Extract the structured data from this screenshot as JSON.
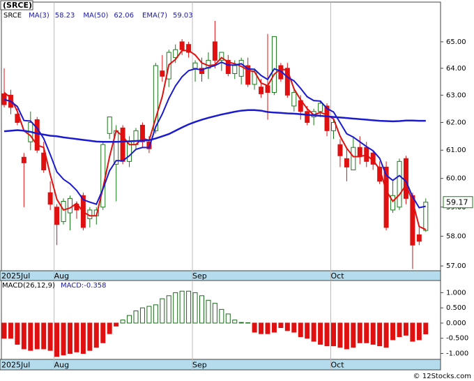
{
  "chart_data": [
    {
      "type": "candlestick",
      "title": "(SRCE)",
      "legend_symbol": "SRCE",
      "categories": [
        "2025Jul",
        null,
        null,
        null,
        null,
        null,
        null,
        null,
        "Aug",
        null,
        null,
        null,
        null,
        null,
        null,
        null,
        null,
        null,
        null,
        null,
        null,
        null,
        null,
        null,
        null,
        null,
        null,
        null,
        null,
        "Sep",
        null,
        null,
        null,
        null,
        null,
        null,
        null,
        null,
        null,
        null,
        null,
        null,
        null,
        null,
        null,
        null,
        null,
        null,
        null,
        null,
        "Oct",
        null,
        null,
        null,
        null,
        null,
        null,
        null,
        null,
        null,
        null,
        null,
        null,
        null,
        null
      ],
      "open": [
        63.05,
        63.0,
        62.3,
        60.75,
        61.3,
        62.1,
        60.9,
        59.5,
        59.0,
        58.5,
        58.8,
        59.1,
        59.4,
        58.6,
        58.7,
        59.0,
        61.6,
        60.5,
        61.8,
        60.6,
        61.2,
        61.9,
        61.3,
        61.7,
        63.9,
        63.6,
        64.4,
        65.0,
        64.9,
        64.0,
        64.0,
        64.0,
        65.0,
        64.3,
        64.3,
        63.8,
        63.7,
        64.1,
        63.4,
        63.3,
        63.35,
        63.1,
        64.1,
        64.0,
        62.6,
        62.8,
        62.4,
        62.2,
        62.4,
        62.6,
        61.7,
        61.2,
        60.7,
        60.3,
        61.1,
        61.1,
        60.9,
        60.4,
        60.4,
        58.9,
        59.0,
        60.7,
        59.4,
        58.05,
        58.2
      ],
      "high": [
        64.0,
        63.2,
        62.5,
        60.9,
        62.4,
        62.2,
        61.3,
        59.9,
        59.1,
        59.3,
        59.4,
        59.2,
        59.5,
        59.0,
        59.0,
        61.3,
        62.2,
        61.9,
        61.9,
        61.5,
        61.8,
        62.0,
        61.5,
        64.2,
        64.5,
        64.7,
        64.9,
        65.1,
        65.0,
        64.3,
        64.4,
        64.6,
        65.8,
        64.6,
        64.5,
        64.3,
        64.4,
        64.4,
        64.0,
        63.6,
        65.3,
        65.2,
        64.2,
        64.2,
        63.3,
        63.0,
        62.6,
        62.5,
        62.8,
        62.7,
        62.1,
        61.4,
        61.1,
        61.5,
        61.5,
        61.3,
        61.0,
        60.6,
        60.6,
        59.9,
        60.7,
        60.8,
        59.5,
        58.3,
        59.3
      ],
      "low": [
        62.55,
        62.3,
        61.9,
        59.0,
        61.0,
        60.9,
        60.2,
        58.9,
        57.7,
        58.4,
        58.2,
        58.6,
        58.2,
        58.3,
        58.4,
        58.9,
        61.4,
        59.2,
        60.5,
        60.4,
        61.0,
        61.1,
        60.9,
        61.6,
        63.5,
        63.3,
        64.2,
        64.5,
        64.4,
        63.5,
        63.5,
        63.6,
        64.0,
        63.9,
        63.7,
        63.6,
        63.4,
        63.3,
        63.2,
        62.9,
        62.1,
        63.0,
        63.5,
        62.9,
        62.4,
        62.1,
        61.9,
        61.9,
        62.2,
        61.5,
        61.4,
        60.4,
        59.9,
        60.3,
        60.5,
        60.4,
        60.3,
        59.8,
        58.2,
        58.8,
        58.9,
        59.1,
        56.9,
        57.7,
        58.15
      ],
      "close": [
        62.65,
        62.55,
        62.0,
        60.55,
        62.0,
        61.0,
        60.3,
        59.1,
        58.4,
        59.2,
        59.3,
        58.9,
        58.3,
        58.9,
        58.9,
        61.2,
        62.2,
        61.7,
        60.6,
        61.3,
        61.7,
        61.3,
        61.05,
        64.1,
        63.7,
        64.6,
        64.7,
        64.7,
        64.6,
        64.2,
        63.8,
        64.3,
        64.3,
        64.6,
        63.8,
        64.1,
        64.3,
        63.4,
        63.9,
        63.05,
        63.1,
        65.2,
        63.6,
        63.0,
        63.1,
        62.4,
        62.0,
        62.4,
        62.7,
        61.7,
        62.0,
        60.8,
        60.4,
        61.1,
        60.8,
        60.6,
        60.5,
        59.9,
        58.3,
        59.4,
        60.6,
        59.3,
        57.7,
        57.83,
        59.17
      ],
      "up_color": "#1a7a1a",
      "down_color": "#e01010",
      "series": [
        {
          "name": "MA(3)",
          "legend_value": 58.23,
          "color": "#e01010",
          "width": 2,
          "values": [
            63.1,
            62.9,
            62.4,
            61.7,
            61.52,
            61.18,
            61.1,
            60.13,
            59.27,
            58.9,
            58.97,
            59.13,
            58.83,
            58.7,
            58.7,
            59.67,
            60.77,
            61.7,
            61.5,
            61.2,
            61.2,
            61.43,
            61.35,
            62.15,
            62.95,
            64.13,
            64.33,
            64.67,
            64.67,
            64.5,
            64.2,
            64.1,
            64.13,
            64.4,
            64.23,
            64.17,
            64.07,
            63.93,
            63.87,
            63.45,
            63.35,
            63.78,
            63.97,
            63.93,
            63.23,
            62.83,
            62.5,
            62.27,
            62.37,
            62.27,
            62.13,
            61.5,
            61.07,
            60.77,
            60.77,
            60.83,
            60.63,
            60.33,
            59.57,
            59.2,
            59.43,
            59.77,
            59.2,
            58.33,
            58.23
          ]
        },
        {
          "name": "MA(50)",
          "legend_value": 62.06,
          "color": "#1a1ad0",
          "width": 2.5,
          "values": [
            61.68,
            61.7,
            61.72,
            61.7,
            61.66,
            61.6,
            61.56,
            61.52,
            61.5,
            61.46,
            61.43,
            61.4,
            61.37,
            61.34,
            61.31,
            61.3,
            61.3,
            61.3,
            61.31,
            61.32,
            61.33,
            61.34,
            61.36,
            61.42,
            61.5,
            61.58,
            61.7,
            61.82,
            61.93,
            62.02,
            62.1,
            62.17,
            62.23,
            62.29,
            62.34,
            62.39,
            62.43,
            62.45,
            62.45,
            62.43,
            62.38,
            62.36,
            62.35,
            62.33,
            62.32,
            62.3,
            62.28,
            62.26,
            62.24,
            62.22,
            62.2,
            62.18,
            62.16,
            62.14,
            62.12,
            62.1,
            62.08,
            62.06,
            62.05,
            62.04,
            62.05,
            62.07,
            62.07,
            62.06,
            62.06
          ]
        },
        {
          "name": "EMA(7)",
          "legend_value": 59.03,
          "color": "#1a1ad0",
          "width": 2,
          "values": [
            62.84,
            62.77,
            62.58,
            62.07,
            62.05,
            61.79,
            61.42,
            60.84,
            60.23,
            59.97,
            59.81,
            59.58,
            59.26,
            59.17,
            59.1,
            59.63,
            60.27,
            60.63,
            60.62,
            60.8,
            61.03,
            61.1,
            61.09,
            61.84,
            62.31,
            62.88,
            63.34,
            63.68,
            63.91,
            63.98,
            63.94,
            64.03,
            64.1,
            64.23,
            64.12,
            64.12,
            64.17,
            63.98,
            63.96,
            63.73,
            63.58,
            63.98,
            63.89,
            63.67,
            63.53,
            63.25,
            62.94,
            62.8,
            62.78,
            62.51,
            62.38,
            61.99,
            61.59,
            61.47,
            61.3,
            61.13,
            60.98,
            60.71,
            60.11,
            59.93,
            60.1,
            59.9,
            59.36,
            58.98,
            59.03
          ]
        }
      ],
      "log_scale": true,
      "ylim": [
        56.84,
        66.53
      ],
      "yticks": [
        {
          "value": 57,
          "label": "57.00"
        },
        {
          "value": 58,
          "label": "58.00"
        },
        {
          "value": 59,
          "label": "59.00"
        },
        {
          "value": 60,
          "label": "60.00"
        },
        {
          "value": 61,
          "label": "61.00"
        },
        {
          "value": 62,
          "label": "62.00"
        },
        {
          "value": 63,
          "label": "63.00"
        },
        {
          "value": 64,
          "label": "64.00"
        },
        {
          "value": 65,
          "label": "65.00"
        }
      ],
      "last_value": {
        "value": 59.17,
        "label": "59.17"
      }
    },
    {
      "type": "bar",
      "title": "MACD(26,12,9)",
      "readout": "MACD:-0.358",
      "categories": [
        "2025Jul",
        null,
        null,
        null,
        null,
        null,
        null,
        null,
        "Aug",
        null,
        null,
        null,
        null,
        null,
        null,
        null,
        null,
        null,
        null,
        null,
        null,
        null,
        null,
        null,
        null,
        null,
        null,
        null,
        null,
        "Sep",
        null,
        null,
        null,
        null,
        null,
        null,
        null,
        null,
        null,
        null,
        null,
        null,
        null,
        null,
        null,
        null,
        null,
        null,
        null,
        null,
        "Oct",
        null,
        null,
        null,
        null,
        null,
        null,
        null,
        null,
        null,
        null,
        null,
        null,
        null,
        null
      ],
      "values": [
        -0.5,
        -0.5,
        -0.7,
        -0.85,
        -0.9,
        -0.85,
        -0.85,
        -0.9,
        -1.1,
        -1.05,
        -1.0,
        -0.95,
        -1.0,
        -0.9,
        -0.8,
        -0.65,
        -0.35,
        -0.1,
        0.1,
        0.25,
        0.4,
        0.5,
        0.55,
        0.6,
        0.8,
        0.9,
        1.0,
        1.05,
        1.05,
        1.0,
        0.9,
        0.75,
        0.65,
        0.45,
        0.3,
        0.1,
        0.02,
        0.01,
        -0.3,
        -0.35,
        -0.35,
        -0.3,
        -0.15,
        -0.25,
        -0.3,
        -0.45,
        -0.5,
        -0.6,
        -0.7,
        -0.75,
        -0.75,
        -0.8,
        -0.85,
        -0.8,
        -0.65,
        -0.65,
        -0.7,
        -0.75,
        -0.8,
        -0.55,
        -0.45,
        -0.4,
        -0.6,
        -0.55,
        -0.358
      ],
      "positive_color": "#1a6a1a",
      "negative_color": "#e01010",
      "ylim": [
        -1.195,
        1.4
      ],
      "yticks": [
        {
          "value": -1,
          "label": "-1.000"
        },
        {
          "value": -0.5,
          "label": "-0.500"
        },
        {
          "value": 0,
          "label": "0.000"
        },
        {
          "value": 0.5,
          "label": "0.500"
        },
        {
          "value": 1,
          "label": "1.000"
        }
      ]
    }
  ],
  "copyright": "© 12Stocks.com"
}
